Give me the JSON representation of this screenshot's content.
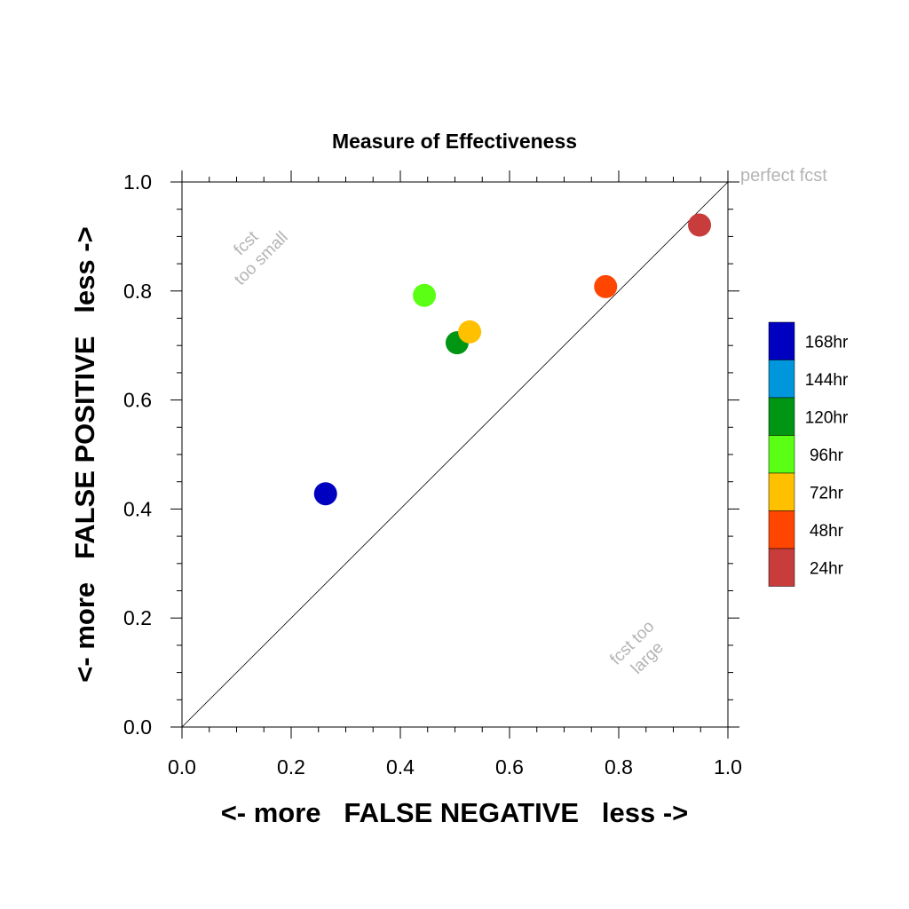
{
  "chart_data": {
    "type": "scatter",
    "title": "Measure of Effectiveness",
    "xlabel": "<- more   FALSE NEGATIVE   less ->",
    "ylabel": "<- more   FALSE POSITIVE   less ->",
    "xlim": [
      0,
      1
    ],
    "ylim": [
      0,
      1
    ],
    "xticks": [
      "0.0",
      "0.2",
      "0.4",
      "0.6",
      "0.8",
      "1.0"
    ],
    "yticks": [
      "0.0",
      "0.2",
      "0.4",
      "0.6",
      "0.8",
      "1.0"
    ],
    "grid": false,
    "diagonal_line": true,
    "annotations": {
      "perfect": "perfect fcst",
      "too_small_1": "fcst",
      "too_small_2": "too small",
      "too_large_1": "fcst too",
      "too_large_2": "large"
    },
    "legend_placement": "right",
    "series": [
      {
        "name": "168hr",
        "color": "#0000C0",
        "x": 0.263,
        "y": 0.428
      },
      {
        "name": "144hr",
        "color": "#0096DC",
        "x": null,
        "y": null
      },
      {
        "name": "120hr",
        "color": "#009614",
        "x": 0.504,
        "y": 0.705
      },
      {
        "name": "96hr",
        "color": "#5AFF14",
        "x": 0.444,
        "y": 0.792
      },
      {
        "name": "72hr",
        "color": "#FFC000",
        "x": 0.527,
        "y": 0.725
      },
      {
        "name": "48hr",
        "color": "#FF4600",
        "x": 0.776,
        "y": 0.808
      },
      {
        "name": "24hr",
        "color": "#C83C3C",
        "x": 0.948,
        "y": 0.921
      }
    ]
  }
}
